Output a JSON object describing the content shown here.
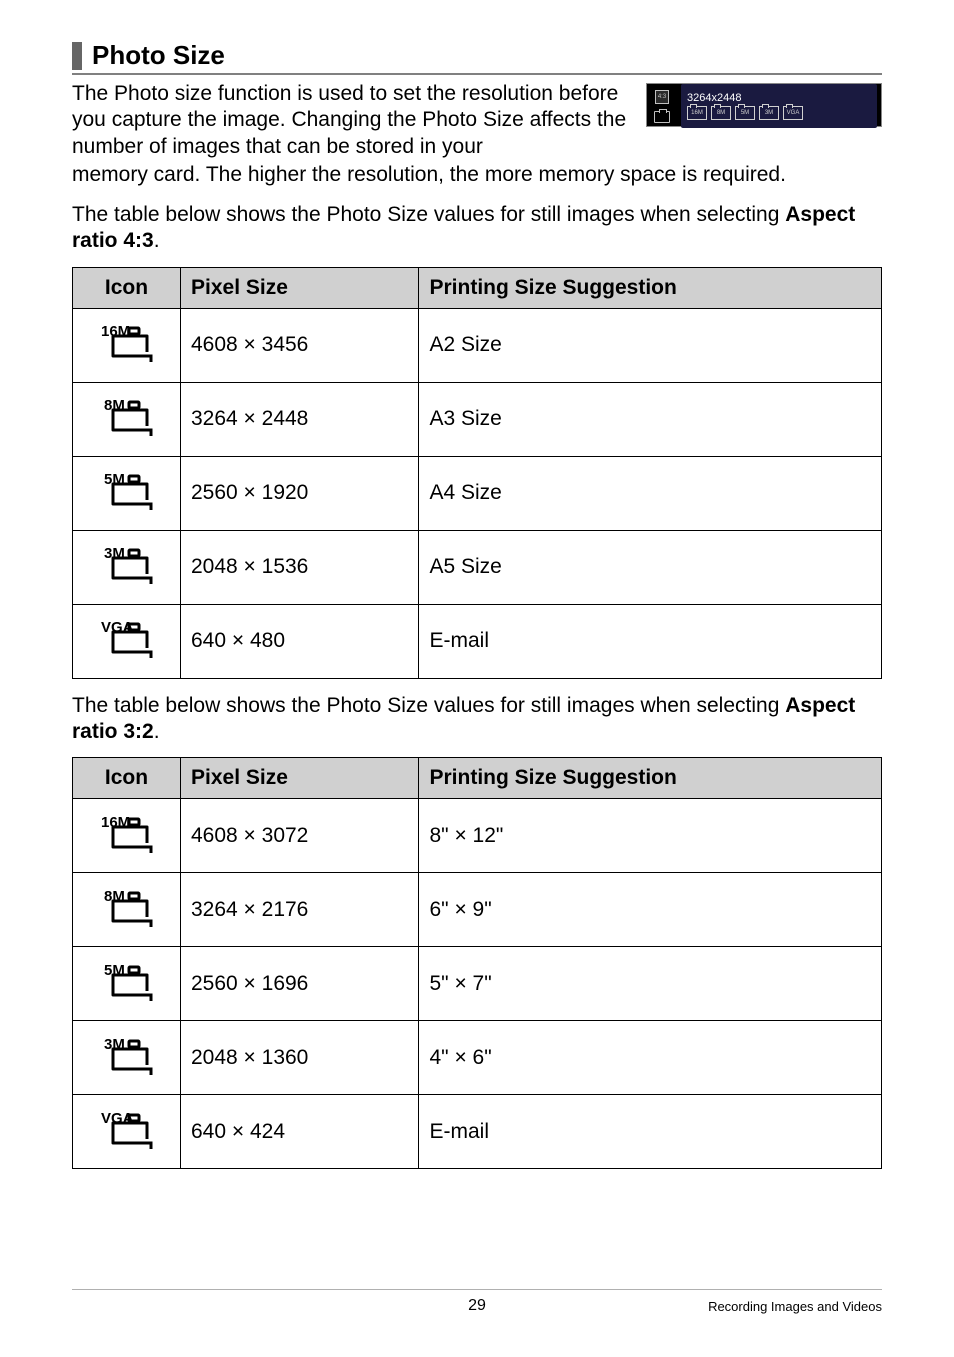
{
  "section": {
    "title": "Photo Size"
  },
  "intro": {
    "line1": "The Photo size function is used to set the resolution before you capture the image. Changing the Photo Size affects the number of images that can be stored in your",
    "line2": "memory card. The higher the resolution, the more memory space is required."
  },
  "screenshot": {
    "dimensions": "3264x2448",
    "thumb_labels": [
      "16M",
      "8M",
      "5M",
      "3M",
      "VGA"
    ]
  },
  "table43": {
    "caption_pre": "The table below shows the Photo Size values for still images when selecting ",
    "caption_bold": "Aspect ratio 4:3",
    "caption_post": ".",
    "headers": {
      "icon": "Icon",
      "pixel": "Pixel Size",
      "print": "Printing Size Suggestion"
    },
    "rows": [
      {
        "icon_label": "16M",
        "pixel": "4608 × 3456",
        "print": "A2 Size"
      },
      {
        "icon_label": "8M",
        "pixel": "3264 × 2448",
        "print": "A3 Size"
      },
      {
        "icon_label": "5M",
        "pixel": "2560 × 1920",
        "print": "A4 Size"
      },
      {
        "icon_label": "3M",
        "pixel": "2048 × 1536",
        "print": "A5 Size"
      },
      {
        "icon_label": "VGA",
        "pixel": "640 × 480",
        "print": "E-mail"
      }
    ]
  },
  "table32": {
    "caption_pre": "The table below shows the Photo Size values for still images when selecting ",
    "caption_bold": "Aspect ratio 3:2",
    "caption_post": ".",
    "headers": {
      "icon": "Icon",
      "pixel": "Pixel Size",
      "print": "Printing Size Suggestion"
    },
    "rows": [
      {
        "icon_label": "16M",
        "pixel": "4608 × 3072",
        "print": "8\" × 12\""
      },
      {
        "icon_label": "8M",
        "pixel": "3264 × 2176",
        "print": "6\" × 9\""
      },
      {
        "icon_label": "5M",
        "pixel": "2560 × 1696",
        "print": "5\" × 7\""
      },
      {
        "icon_label": "3M",
        "pixel": "2048 × 1360",
        "print": "4\" × 6\""
      },
      {
        "icon_label": "VGA",
        "pixel": "640 × 424",
        "print": "E-mail"
      }
    ]
  },
  "footer": {
    "page": "29",
    "section": "Recording Images and Videos"
  }
}
